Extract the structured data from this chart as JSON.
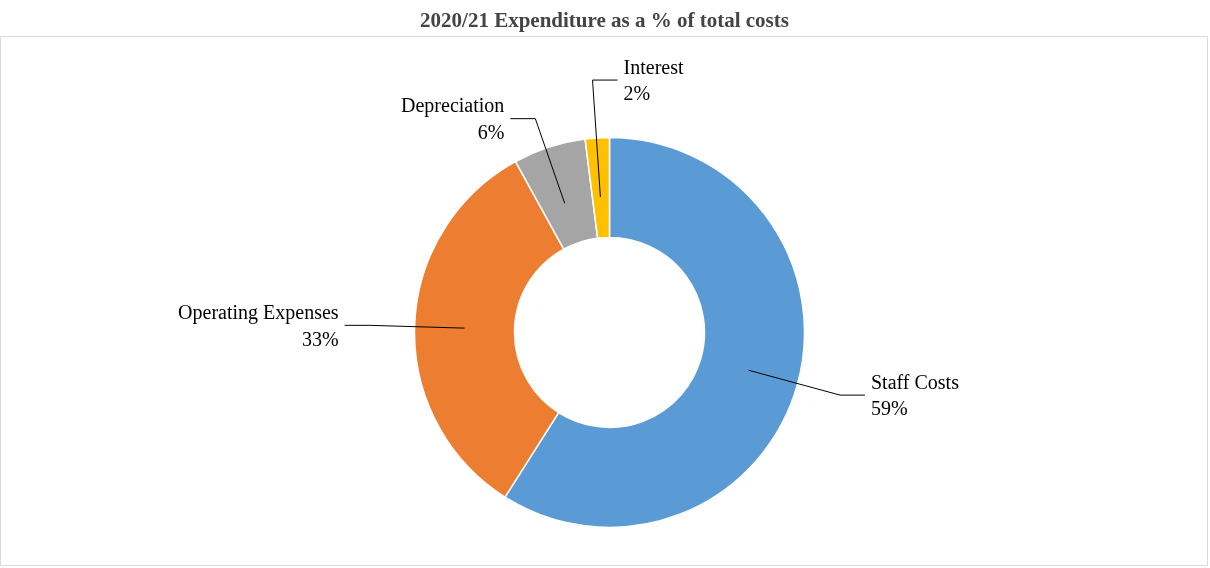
{
  "chart_data": {
    "type": "donut",
    "title": "2020/21 Expenditure as a % of total costs",
    "categories": [
      "Staff Costs",
      "Operating Expenses",
      "Depreciation",
      "Interest"
    ],
    "values": [
      59,
      33,
      6,
      2
    ],
    "colors": [
      "#5b9bd5",
      "#ed7d31",
      "#a5a5a5",
      "#ffc000"
    ],
    "value_labels": [
      "59%",
      "33%",
      "6%",
      "2%"
    ],
    "legend": false
  }
}
